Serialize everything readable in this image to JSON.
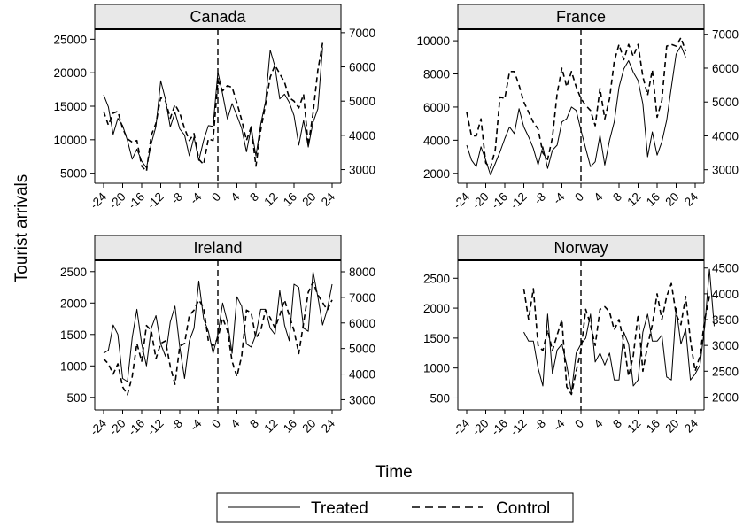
{
  "figure": {
    "ylabel": "Tourist arrivals",
    "xlabel": "Time",
    "legend": {
      "position": "bottom-center",
      "items": [
        {
          "name": "Treated",
          "style": "solid"
        },
        {
          "name": "Control",
          "style": "dashed"
        }
      ]
    }
  },
  "chart_data": [
    {
      "type": "line",
      "title": "Canada",
      "x_ticks": [
        -24,
        -20,
        -16,
        -12,
        -8,
        -4,
        0,
        4,
        8,
        12,
        16,
        20,
        24
      ],
      "y_left_ticks": [
        5000,
        10000,
        15000,
        20000,
        25000
      ],
      "y_right_ticks": [
        3000,
        4000,
        5000,
        6000,
        7000
      ],
      "ylim_left": [
        3500,
        26500
      ],
      "ylim_right": [
        2600,
        7100
      ],
      "series": [
        {
          "name": "Treated",
          "axis": "left",
          "x_start": -24,
          "values": [
            16700,
            14900,
            10800,
            13200,
            12100,
            9900,
            7100,
            8600,
            6800,
            5800,
            9400,
            12000,
            18800,
            16000,
            11900,
            14100,
            11600,
            10700,
            7600,
            10400,
            6900,
            9900,
            12100,
            12000,
            20100,
            16800,
            13100,
            15400,
            13600,
            11700,
            8200,
            11800,
            7600,
            12300,
            15700,
            23400,
            20900,
            16100,
            16800,
            15600,
            13600,
            9200,
            12900,
            8900,
            12600,
            14600,
            23800
          ]
        },
        {
          "name": "Control",
          "axis": "right",
          "x_start": -24,
          "values": [
            4700,
            4300,
            4650,
            4700,
            4200,
            3900,
            3800,
            3850,
            3100,
            2950,
            4000,
            4350,
            5100,
            5000,
            4500,
            4900,
            4650,
            4200,
            3850,
            4050,
            3300,
            3150,
            3900,
            3850,
            5600,
            5300,
            5450,
            5400,
            4950,
            4450,
            3850,
            4250,
            3100,
            4150,
            4900,
            5700,
            6050,
            5800,
            5550,
            5100,
            5000,
            4800,
            5200,
            3700,
            4650,
            5900,
            6700
          ]
        }
      ]
    },
    {
      "type": "line",
      "title": "France",
      "x_ticks": [
        -24,
        -20,
        -16,
        -12,
        -8,
        -4,
        0,
        4,
        8,
        12,
        16,
        20,
        24
      ],
      "y_left_ticks": [
        2000,
        4000,
        6000,
        8000,
        10000
      ],
      "y_right_ticks": [
        3000,
        4000,
        5000,
        6000,
        7000
      ],
      "ylim_left": [
        1400,
        10700
      ],
      "ylim_right": [
        2600,
        7150
      ],
      "series": [
        {
          "name": "Treated",
          "axis": "left",
          "x_start": -24,
          "values": [
            3700,
            2800,
            2400,
            3600,
            2800,
            1900,
            2600,
            3300,
            4100,
            4800,
            4400,
            5900,
            4800,
            4200,
            3500,
            2500,
            3600,
            2300,
            3400,
            3700,
            5100,
            5300,
            6000,
            5800,
            4600,
            3500,
            2400,
            2700,
            4300,
            2500,
            4000,
            5100,
            7200,
            8300,
            8800,
            8100,
            7600,
            6200,
            3000,
            4500,
            3100,
            3900,
            5200,
            7200,
            9200,
            9700,
            9000
          ]
        },
        {
          "name": "Control",
          "axis": "right",
          "x_start": -24,
          "values": [
            4700,
            4000,
            4000,
            4500,
            3200,
            3050,
            3600,
            5150,
            5100,
            5900,
            5900,
            5500,
            5000,
            4700,
            4400,
            4200,
            3500,
            3300,
            3950,
            5250,
            6000,
            5450,
            5900,
            5450,
            5100,
            4900,
            4750,
            4300,
            5400,
            4500,
            5100,
            6200,
            6700,
            6250,
            6700,
            6350,
            6700,
            5750,
            5200,
            5950,
            4550,
            5050,
            6650,
            6700,
            6650,
            6900,
            6500
          ]
        }
      ]
    },
    {
      "type": "line",
      "title": "Ireland",
      "x_ticks": [
        -24,
        -20,
        -16,
        -12,
        -8,
        -4,
        0,
        4,
        8,
        12,
        16,
        20,
        24
      ],
      "y_left_ticks": [
        500,
        1000,
        1500,
        2000,
        2500
      ],
      "y_right_ticks": [
        3000,
        4000,
        5000,
        6000,
        7000,
        8000
      ],
      "ylim_left": [
        300,
        2680
      ],
      "ylim_right": [
        2600,
        8450
      ],
      "series": [
        {
          "name": "Treated",
          "axis": "left",
          "x_start": -24,
          "values": [
            1200,
            1250,
            1650,
            1500,
            800,
            750,
            1450,
            1900,
            1350,
            1000,
            1600,
            1800,
            1350,
            1150,
            1700,
            1950,
            1300,
            800,
            1400,
            1600,
            2350,
            1750,
            1550,
            1200,
            1500,
            2000,
            1700,
            1200,
            2100,
            1950,
            1350,
            1300,
            1500,
            1900,
            1900,
            1600,
            1500,
            2200,
            1650,
            1400,
            2300,
            2250,
            1600,
            1550,
            2500,
            2100,
            1650,
            1900,
            2300
          ]
        },
        {
          "name": "Control",
          "axis": "right",
          "x_start": -24,
          "values": [
            4600,
            4400,
            4000,
            4400,
            3500,
            3200,
            3900,
            5200,
            4500,
            5900,
            5700,
            4600,
            5200,
            5300,
            4300,
            3600,
            5100,
            5200,
            6300,
            6500,
            6900,
            6600,
            5300,
            5100,
            5400,
            6200,
            5700,
            4500,
            3900,
            4700,
            6500,
            6400,
            5400,
            5700,
            6500,
            6200,
            5800,
            6300,
            6900,
            6300,
            5700,
            4800,
            6000,
            7200,
            7600,
            7100,
            6800,
            6500,
            6900
          ]
        }
      ]
    },
    {
      "type": "line",
      "title": "Norway",
      "x_ticks": [
        -24,
        -20,
        -16,
        -12,
        -8,
        -4,
        0,
        4,
        8,
        12,
        16,
        20,
        24
      ],
      "y_left_ticks": [
        500,
        1000,
        1500,
        2000,
        2500
      ],
      "y_right_ticks": [
        2000,
        2500,
        3000,
        3500,
        4000,
        4500
      ],
      "ylim_left": [
        300,
        2800
      ],
      "ylim_right": [
        1750,
        4650
      ],
      "series": [
        {
          "name": "Treated",
          "axis": "left",
          "x_start": -12,
          "values": [
            1600,
            1450,
            1450,
            1000,
            700,
            1900,
            900,
            1300,
            1400,
            1050,
            600,
            1250,
            1400,
            1500,
            1900,
            1100,
            1250,
            1050,
            1250,
            800,
            800,
            1600,
            1400,
            700,
            800,
            1600,
            1900,
            1450,
            1450,
            1550,
            850,
            800,
            2000,
            1400,
            1650,
            800,
            900,
            1050,
            1700,
            2650,
            1700
          ]
        },
        {
          "name": "Control",
          "axis": "right",
          "x_start": -12,
          "values": [
            4100,
            3500,
            4100,
            3000,
            2900,
            3300,
            2900,
            3200,
            3500,
            2200,
            2050,
            2500,
            2900,
            3700,
            3400,
            3000,
            3700,
            3750,
            3650,
            3300,
            3500,
            3050,
            2400,
            2800,
            3600,
            2500,
            3000,
            3400,
            4000,
            3500,
            3950,
            4200,
            3600,
            3400,
            3950,
            3100,
            2500,
            2800,
            3500,
            3950,
            3950
          ]
        }
      ]
    }
  ]
}
